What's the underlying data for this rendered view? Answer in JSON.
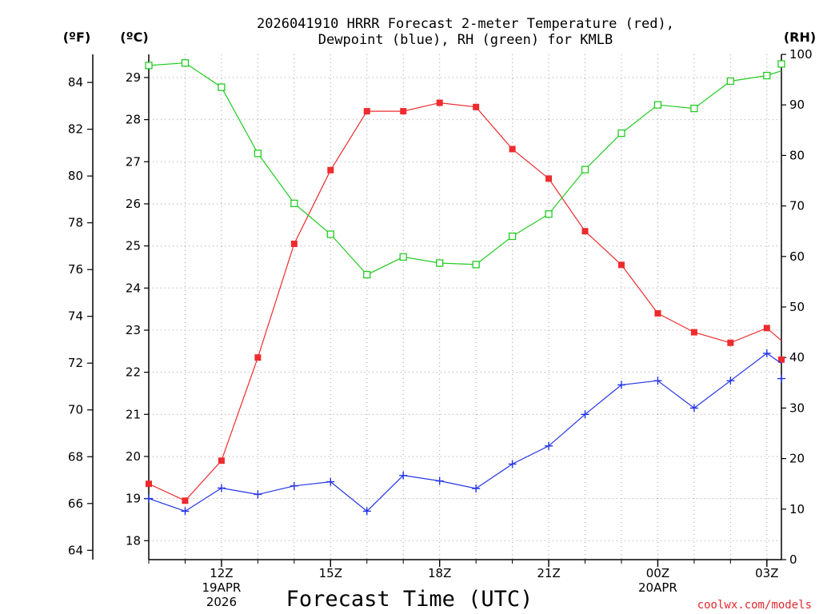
{
  "colors": {
    "temp": "#ee2b2e",
    "dew": "#2233e6",
    "rh": "#22cc22",
    "grid": "#a0a0a0",
    "credit": "#e0282e"
  },
  "chart_data": {
    "type": "line",
    "title_lines": [
      "2026041910 HRRR Forecast 2-meter Temperature (red),",
      "Dewpoint (blue), RH (green) for KMLB"
    ],
    "unit_labels": {
      "left_f": "(ºF)",
      "left_c": "(ºC)",
      "right_rh": "(RH)"
    },
    "xlabel": "Forecast Time (UTC)",
    "credit": "coolwx.com/models",
    "x_range": [
      10,
      27.4
    ],
    "x_ticks": [
      {
        "x": 12,
        "lines": [
          "12Z",
          "19APR",
          "2026"
        ]
      },
      {
        "x": 15,
        "lines": [
          "15Z"
        ]
      },
      {
        "x": 18,
        "lines": [
          "18Z"
        ]
      },
      {
        "x": 21,
        "lines": [
          "21Z"
        ]
      },
      {
        "x": 24,
        "lines": [
          "00Z",
          "20APR"
        ]
      },
      {
        "x": 27,
        "lines": [
          "03Z"
        ]
      }
    ],
    "axes": {
      "left_f": {
        "range": [
          63.6,
          85.2
        ],
        "ticks": [
          64,
          66,
          68,
          70,
          72,
          74,
          76,
          78,
          80,
          82,
          84
        ]
      },
      "left_c": {
        "range": [
          17.55,
          29.55
        ],
        "ticks": [
          18,
          19,
          20,
          21,
          22,
          23,
          24,
          25,
          26,
          27,
          28,
          29
        ]
      },
      "right_rh": {
        "range": [
          0,
          100
        ],
        "ticks": [
          0,
          10,
          20,
          30,
          40,
          50,
          60,
          70,
          80,
          90,
          100
        ]
      }
    },
    "series": [
      {
        "name": "Temperature",
        "axis": "left_c",
        "marker": "filled-square",
        "color": "#ee2b2e",
        "x": [
          10,
          11,
          12,
          13,
          14,
          15,
          16,
          17,
          18,
          19,
          20,
          21,
          22,
          23,
          24,
          25,
          26,
          27,
          28
        ],
        "values": [
          19.35,
          18.95,
          19.9,
          22.35,
          25.05,
          26.8,
          28.2,
          28.2,
          28.4,
          28.3,
          27.3,
          26.6,
          25.35,
          24.55,
          23.4,
          22.95,
          22.7,
          23.05,
          22.3
        ]
      },
      {
        "name": "Dewpoint",
        "axis": "left_c",
        "marker": "plus",
        "color": "#2233e6",
        "x": [
          10,
          11,
          12,
          13,
          14,
          15,
          16,
          17,
          18,
          19,
          20,
          21,
          22,
          23,
          24,
          25,
          26,
          27,
          28
        ],
        "values": [
          19.0,
          18.7,
          19.25,
          19.1,
          19.3,
          19.4,
          18.7,
          19.55,
          19.42,
          19.24,
          19.82,
          20.25,
          21.0,
          21.7,
          21.8,
          21.15,
          21.8,
          22.45,
          21.85
        ]
      },
      {
        "name": "RH",
        "axis": "right_rh",
        "marker": "open-square",
        "color": "#22cc22",
        "x": [
          10,
          11,
          12,
          13,
          14,
          15,
          16,
          17,
          18,
          19,
          20,
          21,
          22,
          23,
          24,
          25,
          26,
          27,
          28
        ],
        "values": [
          97.8,
          98.3,
          93.5,
          80.4,
          70.5,
          64.4,
          56.4,
          59.9,
          58.7,
          58.4,
          64.0,
          68.4,
          77.2,
          84.4,
          90.0,
          89.3,
          94.7,
          95.8,
          98.1
        ]
      }
    ]
  }
}
